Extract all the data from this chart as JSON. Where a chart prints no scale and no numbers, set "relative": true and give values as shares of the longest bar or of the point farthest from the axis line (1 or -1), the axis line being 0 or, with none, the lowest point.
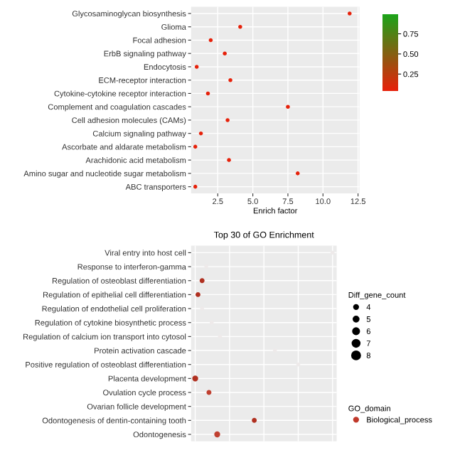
{
  "chart_data": [
    {
      "type": "scatter",
      "xlabel": "Enrich factor",
      "categories": [
        "Glycosaminoglycan biosynthesis",
        "Glioma",
        "Focal adhesion",
        "ErbB signaling pathway",
        "Endocytosis",
        "ECM-receptor interaction",
        "Cytokine-cytokine receptor interaction",
        "Complement and coagulation cascades",
        "Cell adhesion molecules (CAMs)",
        "Calcium signaling pathway",
        "Ascorbate and aldarate metabolism",
        "Arachidonic acid metabolism",
        "Amino sugar and nucleotide sugar metabolism",
        "ABC transporters"
      ],
      "orientation": "horizontal",
      "values": [
        11.9,
        4.1,
        2.0,
        3.0,
        1.0,
        3.4,
        1.8,
        7.5,
        3.2,
        1.3,
        0.9,
        3.3,
        8.2,
        0.9
      ],
      "cvalues": [
        0.05,
        0.05,
        0.05,
        0.05,
        0.05,
        0.05,
        0.05,
        0.05,
        0.05,
        0.05,
        0.05,
        0.05,
        0.05,
        0.05
      ],
      "clim": [
        0.04,
        1.0
      ],
      "cticks": [
        {
          "value": 0.25,
          "label": "0.25"
        },
        {
          "value": 0.5,
          "label": "0.50"
        },
        {
          "value": 0.75,
          "label": "0.75"
        }
      ],
      "xlim": [
        0.6,
        12.6
      ],
      "xticks": [
        {
          "value": 2.5,
          "label": "2.5"
        },
        {
          "value": 5.0,
          "label": "5.0"
        },
        {
          "value": 7.5,
          "label": "7.5"
        },
        {
          "value": 10.0,
          "label": "10.0"
        },
        {
          "value": 12.5,
          "label": "12.5"
        }
      ],
      "grid": true
    },
    {
      "type": "bubble",
      "title": "Top 30 of GO Enrichment",
      "relative": true,
      "orientation": "horizontal",
      "categories": [
        "Viral entry into host cell",
        "Response to interferon-gamma",
        "Regulation of osteoblast differentiation",
        "Regulation of epithelial cell differentiation",
        "Regulation of endothelial cell proliferation",
        "Regulation of cytokine biosynthetic process",
        "Regulation of calcium ion transport into cytosol",
        "Protein activation cascade",
        "Positive regulation of osteoblast differentiation",
        "Placenta development",
        "Ovulation cycle process",
        "Ovarian follicle development",
        "Odontogenesis of dentin-containing tooth",
        "Odontogenesis"
      ],
      "series": [
        {
          "name": "Biological_process",
          "color": "#c0392b",
          "values": [
            1.0,
            0.08,
            0.05,
            0.02,
            0.05,
            0.12,
            0.18,
            0.58,
            0.75,
            0.0,
            0.1,
            null,
            0.43,
            0.16
          ],
          "sizes": [
            4,
            4,
            5,
            5,
            4,
            4,
            4,
            4,
            4,
            6,
            5,
            null,
            5,
            6
          ],
          "colors": [
            "#eeeaea",
            "#eeeaea",
            "#b03020",
            "#b03020",
            "#eeeaea",
            "#eeeaea",
            "#eeeaea",
            "#eeeaea",
            "#eeeaea",
            "#b03020",
            "#c04030",
            "#eeeaea",
            "#b03020",
            "#c04030"
          ]
        }
      ],
      "legend_title": "Diff_gene_count",
      "size_legend": [
        4,
        5,
        6,
        7,
        8
      ],
      "annotations": [
        "GO_domain"
      ],
      "legend": "right",
      "grid": true
    }
  ]
}
